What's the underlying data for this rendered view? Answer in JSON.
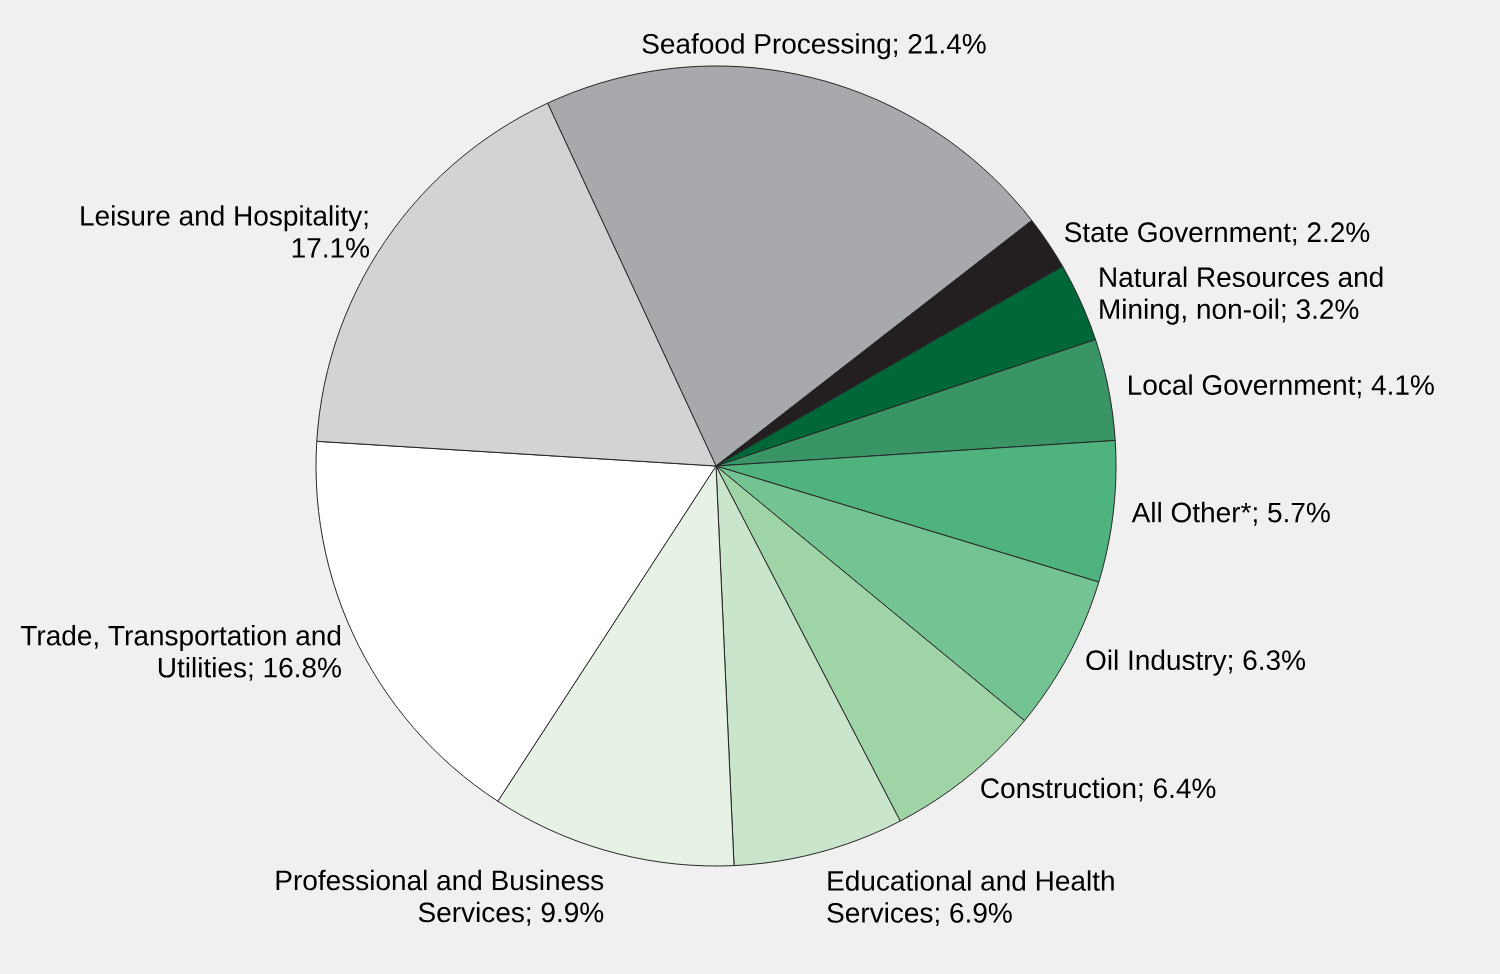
{
  "chart_data": {
    "type": "pie",
    "categories": [
      null,
      null,
      null,
      null,
      null,
      null,
      null,
      null,
      null,
      null,
      null
    ],
    "values": [
      21.4,
      2.2,
      3.2,
      4.1,
      5.7,
      6.3,
      6.4,
      6.9,
      9.9,
      16.8,
      17.1
    ],
    "value_labels": [
      "Seafood Processing; 21.4%",
      "State Government; 2.2%",
      "Natural Resources and Mining, non-oil; 3.2%",
      "Local Government; 4.1%",
      "All Other*; 5.7%",
      "Oil Industry; 6.3%",
      "Construction; 6.4%",
      "Educational and Health Services; 6.9%",
      "Professional and Business Services; 9.9%",
      "Trade, Transportation and Utilities; 16.8%",
      "Leisure and Hospitality; 17.1%"
    ],
    "colors": [
      "#a7a9ac",
      "#231f20",
      "#006838",
      "#3a9566",
      "#4fb37f",
      "#74c493",
      "#9fd4a7",
      "#c9e6cc",
      "#e6f2e3",
      "#ffffff",
      "#d1d3d4"
    ]
  }
}
